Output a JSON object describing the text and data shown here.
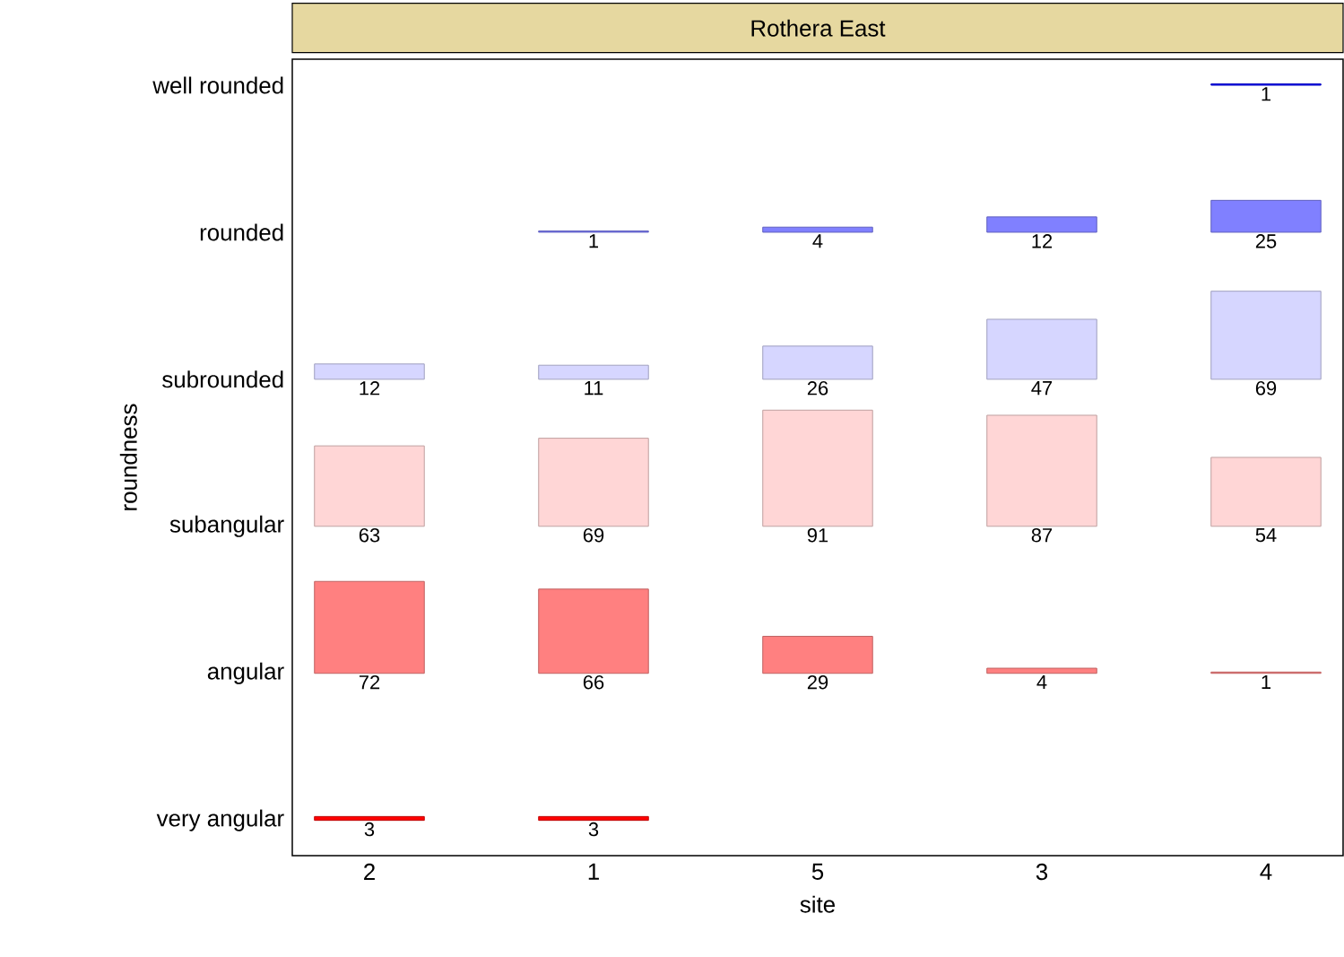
{
  "chart_data": {
    "type": "heatmap",
    "title": "Rothera East",
    "xlabel": "site",
    "ylabel": "roundness",
    "categories": [
      "2",
      "1",
      "5",
      "3",
      "4"
    ],
    "y_categories": [
      "well rounded",
      "rounded",
      "subrounded",
      "subangular",
      "angular",
      "very angular"
    ],
    "cells": [
      [
        null,
        null,
        null,
        null,
        1
      ],
      [
        null,
        1,
        4,
        12,
        25
      ],
      [
        12,
        11,
        26,
        47,
        69
      ],
      [
        63,
        69,
        91,
        87,
        54
      ],
      [
        72,
        66,
        29,
        4,
        1
      ],
      [
        3,
        3,
        null,
        null,
        null
      ]
    ],
    "colors": [
      "#0000ff",
      "#8080ff",
      "#d6d6ff",
      "#ffd6d6",
      "#ff8080",
      "#ff0000"
    ],
    "data_labels": true
  }
}
